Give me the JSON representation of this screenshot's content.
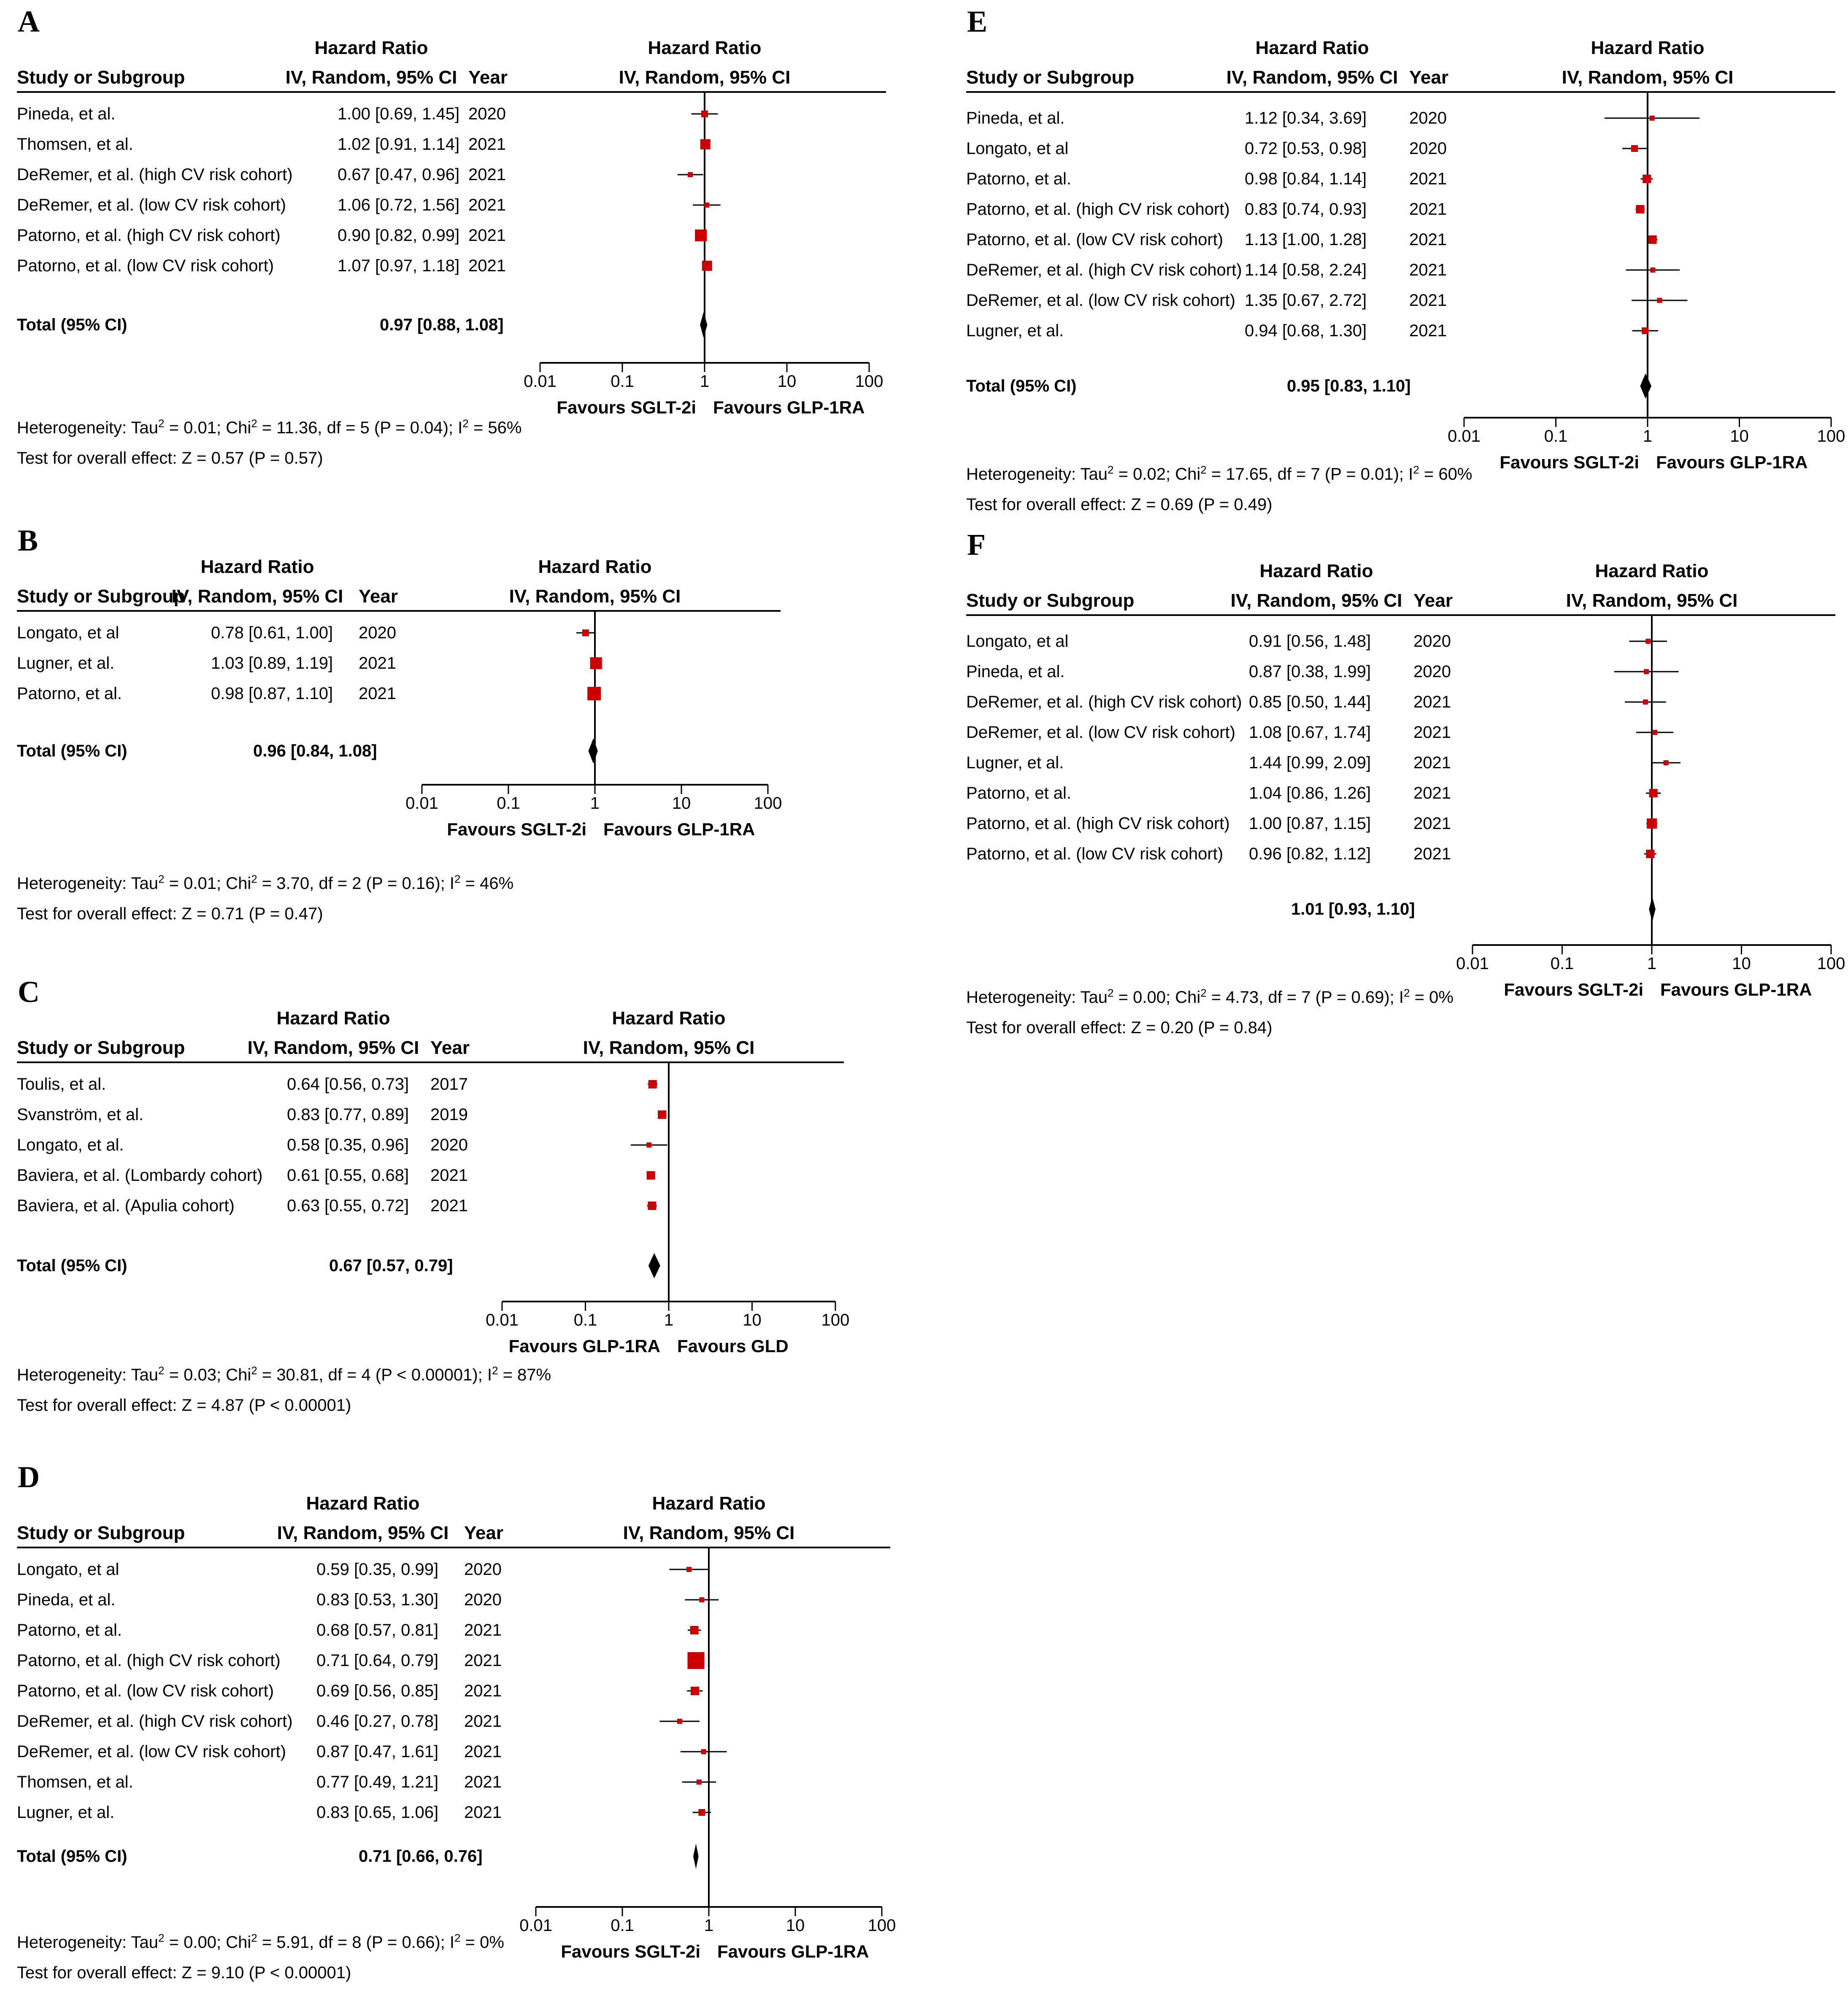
{
  "headers": {
    "study": "Study or Subgroup",
    "hr": "Hazard Ratio",
    "method": "IV, Random, 95% CI",
    "year": "Year"
  },
  "ticks": [
    "0.01",
    "0.1",
    "1",
    "10",
    "100"
  ],
  "colors": {
    "marker": "#cc0000",
    "line": "#000000"
  },
  "chart_data": [
    {
      "type": "forest",
      "panel": "A",
      "studies": [
        {
          "name": "Pineda, et al.",
          "ci": "1.00 [0.69, 1.45]",
          "year": "2020",
          "hr": 1.0,
          "lo": 0.69,
          "hi": 1.45,
          "w": 2
        },
        {
          "name": "Thomsen, et al.",
          "ci": "1.02 [0.91, 1.14]",
          "year": "2021",
          "hr": 1.02,
          "lo": 0.91,
          "hi": 1.14,
          "w": 4
        },
        {
          "name": "DeRemer, et al. (high CV risk cohort)",
          "ci": "0.67 [0.47, 0.96]",
          "year": "2021",
          "hr": 0.67,
          "lo": 0.47,
          "hi": 0.96,
          "w": 1
        },
        {
          "name": "DeRemer, et al. (low CV risk cohort)",
          "ci": "1.06 [0.72, 1.56]",
          "year": "2021",
          "hr": 1.06,
          "lo": 0.72,
          "hi": 1.56,
          "w": 1
        },
        {
          "name": "Patorno, et al. (high CV risk cohort)",
          "ci": "0.90 [0.82, 0.99]",
          "year": "2021",
          "hr": 0.9,
          "lo": 0.82,
          "hi": 0.99,
          "w": 5
        },
        {
          "name": "Patorno, et al. (low CV risk cohort)",
          "ci": "1.07 [0.97, 1.18]",
          "year": "2021",
          "hr": 1.07,
          "lo": 0.97,
          "hi": 1.18,
          "w": 4
        }
      ],
      "total": {
        "label": "Total (95% CI)",
        "ci": "0.97 [0.88, 1.08]",
        "hr": 0.97,
        "lo": 0.88,
        "hi": 1.08
      },
      "favours_left": "Favours SGLT-2i",
      "favours_right": "Favours GLP-1RA",
      "heterogeneity": {
        "tau2": "0.01",
        "chi2": "11.36",
        "df": "5",
        "p": "0.04",
        "i2": "56%"
      },
      "overall": "Test for overall effect: Z = 0.57 (P = 0.57)"
    },
    {
      "type": "forest",
      "panel": "B",
      "studies": [
        {
          "name": "Longato, et al",
          "ci": "0.78 [0.61, 1.00]",
          "year": "2020",
          "hr": 0.78,
          "lo": 0.61,
          "hi": 1.0,
          "w": 2
        },
        {
          "name": "Lugner, et al.",
          "ci": "1.03 [0.89, 1.19]",
          "year": "2021",
          "hr": 1.03,
          "lo": 0.89,
          "hi": 1.19,
          "w": 5
        },
        {
          "name": "Patorno, et al.",
          "ci": "0.98 [0.87, 1.10]",
          "year": "2021",
          "hr": 0.98,
          "lo": 0.87,
          "hi": 1.1,
          "w": 6
        }
      ],
      "total": {
        "label": "Total (95% CI)",
        "ci": "0.96 [0.84, 1.08]",
        "hr": 0.96,
        "lo": 0.84,
        "hi": 1.08
      },
      "favours_left": "Favours SGLT-2i",
      "favours_right": "Favours GLP-1RA",
      "heterogeneity": {
        "tau2": "0.01",
        "chi2": "3.70",
        "df": "2",
        "p": "0.16",
        "i2": "46%"
      },
      "overall": "Test for overall effect: Z = 0.71 (P = 0.47)"
    },
    {
      "type": "forest",
      "panel": "C",
      "studies": [
        {
          "name": "Toulis, et al.",
          "ci": "0.64 [0.56, 0.73]",
          "year": "2017",
          "hr": 0.64,
          "lo": 0.56,
          "hi": 0.73,
          "w": 3
        },
        {
          "name": "Svanström, et al.",
          "ci": "0.83 [0.77, 0.89]",
          "year": "2019",
          "hr": 0.83,
          "lo": 0.77,
          "hi": 0.89,
          "w": 3
        },
        {
          "name": "Longato, et al.",
          "ci": "0.58 [0.35, 0.96]",
          "year": "2020",
          "hr": 0.58,
          "lo": 0.35,
          "hi": 0.96,
          "w": 1
        },
        {
          "name": "Baviera, et al. (Lombardy cohort)",
          "ci": "0.61 [0.55, 0.68]",
          "year": "2021",
          "hr": 0.61,
          "lo": 0.55,
          "hi": 0.68,
          "w": 3
        },
        {
          "name": "Baviera, et al. (Apulia cohort)",
          "ci": "0.63 [0.55, 0.72]",
          "year": "2021",
          "hr": 0.63,
          "lo": 0.55,
          "hi": 0.72,
          "w": 3
        }
      ],
      "total": {
        "label": "Total (95% CI)",
        "ci": "0.67 [0.57, 0.79]",
        "hr": 0.67,
        "lo": 0.57,
        "hi": 0.79
      },
      "favours_left": "Favours GLP-1RA",
      "favours_right": "Favours GLD",
      "heterogeneity": {
        "tau2": "0.03",
        "chi2": "30.81",
        "df": "4",
        "p": "< 0.00001",
        "i2": "87%"
      },
      "overall": "Test for overall effect: Z = 4.87 (P < 0.00001)"
    },
    {
      "type": "forest",
      "panel": "D",
      "studies": [
        {
          "name": "Longato, et al",
          "ci": "0.59 [0.35, 0.99]",
          "year": "2020",
          "hr": 0.59,
          "lo": 0.35,
          "hi": 0.99,
          "w": 1
        },
        {
          "name": "Pineda, et al.",
          "ci": "0.83 [0.53, 1.30]",
          "year": "2020",
          "hr": 0.83,
          "lo": 0.53,
          "hi": 1.3,
          "w": 1
        },
        {
          "name": "Patorno, et al.",
          "ci": "0.68 [0.57, 0.81]",
          "year": "2021",
          "hr": 0.68,
          "lo": 0.57,
          "hi": 0.81,
          "w": 3
        },
        {
          "name": "Patorno, et al. (high CV risk cohort)",
          "ci": "0.71 [0.64, 0.79]",
          "year": "2021",
          "hr": 0.71,
          "lo": 0.64,
          "hi": 0.79,
          "w": 8
        },
        {
          "name": "Patorno, et al. (low CV risk cohort)",
          "ci": "0.69 [0.56, 0.85]",
          "year": "2021",
          "hr": 0.69,
          "lo": 0.56,
          "hi": 0.85,
          "w": 3
        },
        {
          "name": "DeRemer, et al. (high CV risk cohort)",
          "ci": "0.46 [0.27, 0.78]",
          "year": "2021",
          "hr": 0.46,
          "lo": 0.27,
          "hi": 0.78,
          "w": 1
        },
        {
          "name": "DeRemer, et al. (low CV risk cohort)",
          "ci": "0.87 [0.47, 1.61]",
          "year": "2021",
          "hr": 0.87,
          "lo": 0.47,
          "hi": 1.61,
          "w": 1
        },
        {
          "name": "Thomsen, et al.",
          "ci": "0.77 [0.49, 1.21]",
          "year": "2021",
          "hr": 0.77,
          "lo": 0.49,
          "hi": 1.21,
          "w": 1
        },
        {
          "name": "Lugner, et al.",
          "ci": "0.83 [0.65, 1.06]",
          "year": "2021",
          "hr": 0.83,
          "lo": 0.65,
          "hi": 1.06,
          "w": 2
        }
      ],
      "total": {
        "label": "Total (95% CI)",
        "ci": "0.71 [0.66, 0.76]",
        "hr": 0.71,
        "lo": 0.66,
        "hi": 0.76
      },
      "favours_left": "Favours SGLT-2i",
      "favours_right": "Favours GLP-1RA",
      "heterogeneity": {
        "tau2": "0.00",
        "chi2": "5.91",
        "df": "8",
        "p": "0.66",
        "i2": "0%"
      },
      "overall": "Test for overall effect: Z = 9.10 (P < 0.00001)"
    },
    {
      "type": "forest",
      "panel": "E",
      "studies": [
        {
          "name": "Pineda, et al.",
          "ci": "1.12 [0.34, 3.69]",
          "year": "2020",
          "hr": 1.12,
          "lo": 0.34,
          "hi": 3.69,
          "w": 1
        },
        {
          "name": "Longato, et al",
          "ci": "0.72 [0.53, 0.98]",
          "year": "2020",
          "hr": 0.72,
          "lo": 0.53,
          "hi": 0.98,
          "w": 2
        },
        {
          "name": "Patorno, et al.",
          "ci": "0.98 [0.84, 1.14]",
          "year": "2021",
          "hr": 0.98,
          "lo": 0.84,
          "hi": 1.14,
          "w": 3
        },
        {
          "name": "Patorno, et al. (high CV risk cohort)",
          "ci": "0.83 [0.74, 0.93]",
          "year": "2021",
          "hr": 0.83,
          "lo": 0.74,
          "hi": 0.93,
          "w": 3
        },
        {
          "name": "Patorno, et al. (low CV risk cohort)",
          "ci": "1.13 [1.00, 1.28]",
          "year": "2021",
          "hr": 1.13,
          "lo": 1.0,
          "hi": 1.28,
          "w": 3
        },
        {
          "name": "DeRemer, et al. (high CV risk cohort)",
          "ci": "1.14 [0.58, 2.24]",
          "year": "2021",
          "hr": 1.14,
          "lo": 0.58,
          "hi": 2.24,
          "w": 1
        },
        {
          "name": "DeRemer, et al. (low CV risk cohort)",
          "ci": "1.35 [0.67, 2.72]",
          "year": "2021",
          "hr": 1.35,
          "lo": 0.67,
          "hi": 2.72,
          "w": 1
        },
        {
          "name": "Lugner, et al.",
          "ci": "0.94 [0.68, 1.30]",
          "year": "2021",
          "hr": 0.94,
          "lo": 0.68,
          "hi": 1.3,
          "w": 2
        }
      ],
      "total": {
        "label": "Total (95% CI)",
        "ci": "0.95 [0.83, 1.10]",
        "hr": 0.95,
        "lo": 0.83,
        "hi": 1.1
      },
      "favours_left": "Favours SGLT-2i",
      "favours_right": "Favours GLP-1RA",
      "heterogeneity": {
        "tau2": "0.02",
        "chi2": "17.65",
        "df": "7",
        "p": "0.01",
        "i2": "60%"
      },
      "overall": "Test for overall effect: Z = 0.69 (P = 0.49)"
    },
    {
      "type": "forest",
      "panel": "F",
      "studies": [
        {
          "name": "Longato, et al",
          "ci": "0.91 [0.56, 1.48]",
          "year": "2020",
          "hr": 0.91,
          "lo": 0.56,
          "hi": 1.48,
          "w": 1
        },
        {
          "name": "Pineda, et al.",
          "ci": "0.87 [0.38, 1.99]",
          "year": "2020",
          "hr": 0.87,
          "lo": 0.38,
          "hi": 1.99,
          "w": 1
        },
        {
          "name": "DeRemer, et al. (high CV risk cohort)",
          "ci": "0.85 [0.50, 1.44]",
          "year": "2021",
          "hr": 0.85,
          "lo": 0.5,
          "hi": 1.44,
          "w": 1
        },
        {
          "name": "DeRemer, et al. (low CV risk cohort)",
          "ci": "1.08 [0.67, 1.74]",
          "year": "2021",
          "hr": 1.08,
          "lo": 0.67,
          "hi": 1.74,
          "w": 1
        },
        {
          "name": "Lugner, et al.",
          "ci": "1.44 [0.99, 2.09]",
          "year": "2021",
          "hr": 1.44,
          "lo": 0.99,
          "hi": 2.09,
          "w": 1
        },
        {
          "name": "Patorno, et al.",
          "ci": "1.04 [0.86, 1.26]",
          "year": "2021",
          "hr": 1.04,
          "lo": 0.86,
          "hi": 1.26,
          "w": 3
        },
        {
          "name": "Patorno, et al. (high CV risk cohort)",
          "ci": "1.00 [0.87, 1.15]",
          "year": "2021",
          "hr": 1.0,
          "lo": 0.87,
          "hi": 1.15,
          "w": 4
        },
        {
          "name": "Patorno, et al. (low CV risk cohort)",
          "ci": "0.96 [0.82, 1.12]",
          "year": "2021",
          "hr": 0.96,
          "lo": 0.82,
          "hi": 1.12,
          "w": 3
        }
      ],
      "total": {
        "label": "",
        "ci": "1.01 [0.93, 1.10]",
        "hr": 1.01,
        "lo": 0.93,
        "hi": 1.1
      },
      "favours_left": "Favours SGLT-2i",
      "favours_right": "Favours GLP-1RA",
      "heterogeneity": {
        "tau2": "0.00",
        "chi2": "4.73",
        "df": "7",
        "p": "0.69",
        "i2": "0%"
      },
      "overall": "Test for overall effect: Z = 0.20 (P = 0.84)"
    }
  ]
}
